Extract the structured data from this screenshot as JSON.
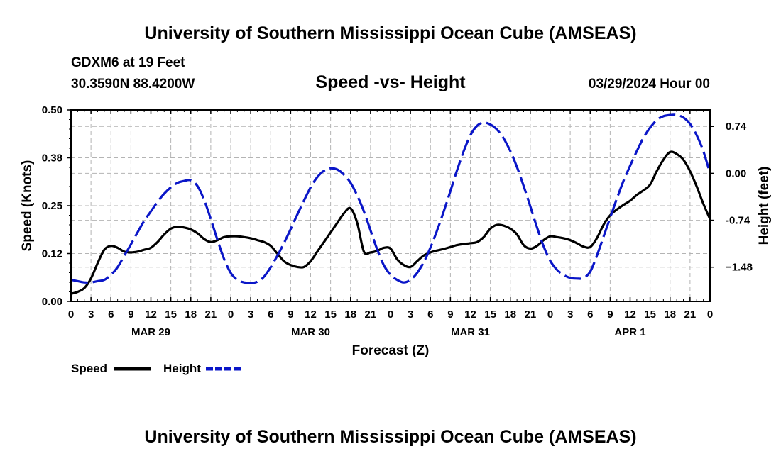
{
  "header": {
    "main_title": "University of Southern Mississippi Ocean Cube (AMSEAS)",
    "station": "GDXM6 at 19 Feet",
    "coordinates": "30.3590N  88.4200W",
    "plot_title": "Speed -vs- Height",
    "datetime": "03/29/2024 Hour 00"
  },
  "footer": {
    "main_title": "University of Southern Mississippi Ocean Cube (AMSEAS)"
  },
  "colors": {
    "speed": "#000000",
    "height": "#0a16c8",
    "grid": "#b4b4b4"
  },
  "chart_data": {
    "type": "line",
    "title": "Speed -vs- Height",
    "xlabel": "Forecast (Z)",
    "ylabel_left": "Speed (Knots)",
    "ylabel_right": "Height (feet)",
    "x_range_hours": [
      0,
      96
    ],
    "ylim_left": [
      0,
      0.5
    ],
    "ylim_right": [
      -2.02,
      1.0
    ],
    "yticks_left": [
      {
        "value": 0.0,
        "label": "0.00"
      },
      {
        "value": 0.125,
        "label": "0.12"
      },
      {
        "value": 0.25,
        "label": "0.25"
      },
      {
        "value": 0.375,
        "label": "0.38"
      },
      {
        "value": 0.5,
        "label": "0.50"
      }
    ],
    "yticks_right": [
      {
        "value": 0.74,
        "label": "0.74"
      },
      {
        "value": 0.0,
        "label": "0.00"
      },
      {
        "value": -0.74,
        "label": "-0.74"
      },
      {
        "value": -1.48,
        "label": "−1.48"
      }
    ],
    "xtick_labels": [
      "0",
      "3",
      "6",
      "9",
      "12",
      "15",
      "18",
      "21",
      "0",
      "3",
      "6",
      "9",
      "12",
      "15",
      "18",
      "21",
      "0",
      "3",
      "6",
      "9",
      "12",
      "15",
      "18",
      "21",
      "0",
      "3",
      "6",
      "9",
      "12",
      "15",
      "18",
      "21",
      "0"
    ],
    "day_labels": [
      {
        "hour": 12,
        "label": "MAR 29"
      },
      {
        "hour": 36,
        "label": "MAR 30"
      },
      {
        "hour": 60,
        "label": "MAR 31"
      },
      {
        "hour": 84,
        "label": "APR 1"
      }
    ],
    "grid": true,
    "legend_position": "bottom-left",
    "series": [
      {
        "name": "Speed",
        "axis": "left",
        "style": "solid",
        "points": [
          [
            0,
            0.02
          ],
          [
            1,
            0.025
          ],
          [
            2,
            0.035
          ],
          [
            3,
            0.06
          ],
          [
            4,
            0.1
          ],
          [
            5,
            0.135
          ],
          [
            6,
            0.145
          ],
          [
            7,
            0.14
          ],
          [
            8,
            0.13
          ],
          [
            9,
            0.128
          ],
          [
            10,
            0.13
          ],
          [
            11,
            0.135
          ],
          [
            12,
            0.14
          ],
          [
            13,
            0.155
          ],
          [
            14,
            0.175
          ],
          [
            15,
            0.19
          ],
          [
            16,
            0.195
          ],
          [
            17,
            0.193
          ],
          [
            18,
            0.188
          ],
          [
            19,
            0.178
          ],
          [
            20,
            0.163
          ],
          [
            21,
            0.155
          ],
          [
            22,
            0.16
          ],
          [
            23,
            0.168
          ],
          [
            24,
            0.17
          ],
          [
            25,
            0.17
          ],
          [
            26,
            0.168
          ],
          [
            27,
            0.165
          ],
          [
            28,
            0.16
          ],
          [
            29,
            0.155
          ],
          [
            30,
            0.145
          ],
          [
            31,
            0.125
          ],
          [
            32,
            0.105
          ],
          [
            33,
            0.095
          ],
          [
            34,
            0.09
          ],
          [
            35,
            0.09
          ],
          [
            36,
            0.105
          ],
          [
            37,
            0.13
          ],
          [
            38,
            0.155
          ],
          [
            39,
            0.18
          ],
          [
            40,
            0.205
          ],
          [
            41,
            0.23
          ],
          [
            42,
            0.243
          ],
          [
            43,
            0.205
          ],
          [
            44,
            0.13
          ],
          [
            45,
            0.128
          ],
          [
            46,
            0.132
          ],
          [
            47,
            0.14
          ],
          [
            48,
            0.138
          ],
          [
            49,
            0.11
          ],
          [
            50,
            0.095
          ],
          [
            51,
            0.09
          ],
          [
            52,
            0.105
          ],
          [
            53,
            0.12
          ],
          [
            54,
            0.128
          ],
          [
            55,
            0.133
          ],
          [
            56,
            0.137
          ],
          [
            57,
            0.142
          ],
          [
            58,
            0.147
          ],
          [
            59,
            0.15
          ],
          [
            60,
            0.152
          ],
          [
            61,
            0.155
          ],
          [
            62,
            0.168
          ],
          [
            63,
            0.19
          ],
          [
            64,
            0.2
          ],
          [
            65,
            0.198
          ],
          [
            66,
            0.19
          ],
          [
            67,
            0.175
          ],
          [
            68,
            0.147
          ],
          [
            69,
            0.138
          ],
          [
            70,
            0.145
          ],
          [
            71,
            0.16
          ],
          [
            72,
            0.17
          ],
          [
            73,
            0.168
          ],
          [
            74,
            0.165
          ],
          [
            75,
            0.16
          ],
          [
            76,
            0.152
          ],
          [
            77,
            0.143
          ],
          [
            78,
            0.142
          ],
          [
            79,
            0.165
          ],
          [
            80,
            0.2
          ],
          [
            81,
            0.225
          ],
          [
            82,
            0.24
          ],
          [
            83,
            0.252
          ],
          [
            84,
            0.263
          ],
          [
            85,
            0.278
          ],
          [
            86,
            0.29
          ],
          [
            87,
            0.305
          ],
          [
            88,
            0.34
          ],
          [
            89,
            0.37
          ],
          [
            90,
            0.39
          ],
          [
            91,
            0.385
          ],
          [
            92,
            0.37
          ],
          [
            93,
            0.34
          ],
          [
            94,
            0.3
          ],
          [
            95,
            0.255
          ],
          [
            96,
            0.215
          ]
        ]
      },
      {
        "name": "Height",
        "axis": "right",
        "style": "dashed",
        "points": [
          [
            0,
            -1.68
          ],
          [
            1,
            -1.7
          ],
          [
            2,
            -1.72
          ],
          [
            3,
            -1.72
          ],
          [
            4,
            -1.7
          ],
          [
            5,
            -1.68
          ],
          [
            6,
            -1.6
          ],
          [
            7,
            -1.48
          ],
          [
            8,
            -1.3
          ],
          [
            9,
            -1.12
          ],
          [
            10,
            -0.93
          ],
          [
            11,
            -0.75
          ],
          [
            12,
            -0.6
          ],
          [
            13,
            -0.45
          ],
          [
            14,
            -0.32
          ],
          [
            15,
            -0.22
          ],
          [
            16,
            -0.15
          ],
          [
            17,
            -0.12
          ],
          [
            18,
            -0.11
          ],
          [
            19,
            -0.2
          ],
          [
            20,
            -0.42
          ],
          [
            21,
            -0.72
          ],
          [
            22,
            -1.05
          ],
          [
            23,
            -1.35
          ],
          [
            24,
            -1.57
          ],
          [
            25,
            -1.68
          ],
          [
            26,
            -1.72
          ],
          [
            27,
            -1.73
          ],
          [
            28,
            -1.71
          ],
          [
            29,
            -1.63
          ],
          [
            30,
            -1.48
          ],
          [
            31,
            -1.3
          ],
          [
            32,
            -1.1
          ],
          [
            33,
            -0.88
          ],
          [
            34,
            -0.65
          ],
          [
            35,
            -0.43
          ],
          [
            36,
            -0.22
          ],
          [
            37,
            -0.06
          ],
          [
            38,
            0.04
          ],
          [
            39,
            0.08
          ],
          [
            40,
            0.06
          ],
          [
            41,
            -0.02
          ],
          [
            42,
            -0.15
          ],
          [
            43,
            -0.35
          ],
          [
            44,
            -0.6
          ],
          [
            45,
            -0.9
          ],
          [
            46,
            -1.2
          ],
          [
            47,
            -1.45
          ],
          [
            48,
            -1.6
          ],
          [
            49,
            -1.68
          ],
          [
            50,
            -1.72
          ],
          [
            51,
            -1.68
          ],
          [
            52,
            -1.57
          ],
          [
            53,
            -1.4
          ],
          [
            54,
            -1.17
          ],
          [
            55,
            -0.9
          ],
          [
            56,
            -0.6
          ],
          [
            57,
            -0.28
          ],
          [
            58,
            0.05
          ],
          [
            59,
            0.35
          ],
          [
            60,
            0.6
          ],
          [
            61,
            0.75
          ],
          [
            62,
            0.8
          ],
          [
            63,
            0.77
          ],
          [
            64,
            0.69
          ],
          [
            65,
            0.55
          ],
          [
            66,
            0.35
          ],
          [
            67,
            0.1
          ],
          [
            68,
            -0.2
          ],
          [
            69,
            -0.52
          ],
          [
            70,
            -0.85
          ],
          [
            71,
            -1.15
          ],
          [
            72,
            -1.38
          ],
          [
            73,
            -1.52
          ],
          [
            74,
            -1.6
          ],
          [
            75,
            -1.65
          ],
          [
            76,
            -1.66
          ],
          [
            77,
            -1.65
          ],
          [
            78,
            -1.55
          ],
          [
            79,
            -1.3
          ],
          [
            80,
            -1.0
          ],
          [
            81,
            -0.7
          ],
          [
            82,
            -0.4
          ],
          [
            83,
            -0.12
          ],
          [
            84,
            0.12
          ],
          [
            85,
            0.35
          ],
          [
            86,
            0.56
          ],
          [
            87,
            0.72
          ],
          [
            88,
            0.84
          ],
          [
            89,
            0.9
          ],
          [
            90,
            0.92
          ],
          [
            91,
            0.92
          ],
          [
            92,
            0.88
          ],
          [
            93,
            0.78
          ],
          [
            94,
            0.6
          ],
          [
            95,
            0.35
          ],
          [
            96,
            0.0
          ]
        ]
      }
    ],
    "legend": [
      {
        "label": "Speed",
        "style": "solid"
      },
      {
        "label": "Height",
        "style": "dashed"
      }
    ]
  }
}
